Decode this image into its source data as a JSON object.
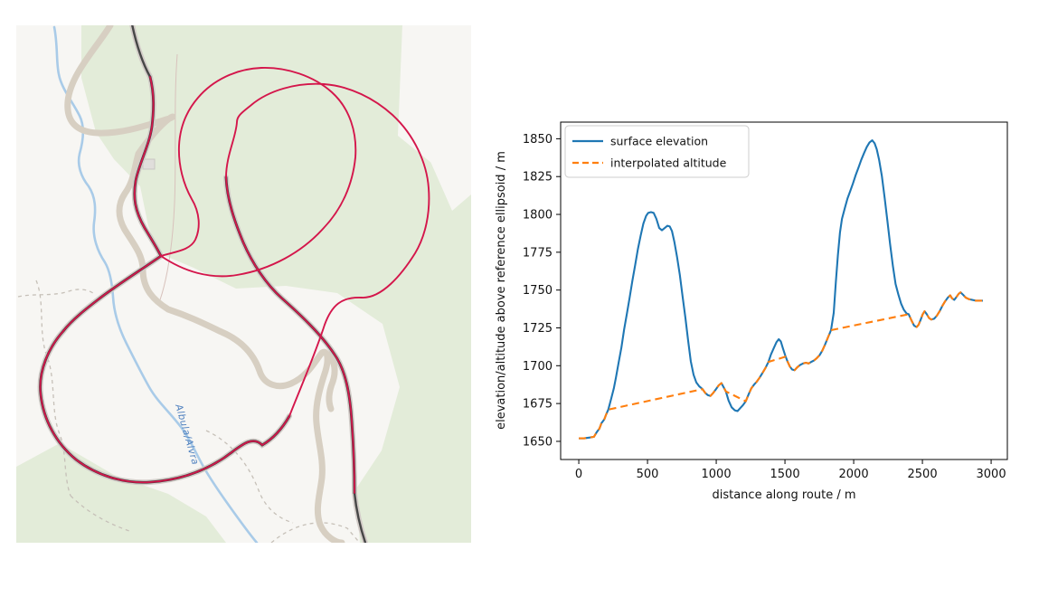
{
  "map": {
    "waterway_label": "Albula/Alvra",
    "colors": {
      "background": "#f7f6f3",
      "forest": "#e3ecd9",
      "water": "#a9cbe8",
      "water_label": "#4d7fbe",
      "road": "#d7cfc2",
      "trail": "#c6c0b8",
      "minor_path": "#d8c2bc",
      "railway": "#474747",
      "railway_inner": "#3c3c3c",
      "railway_casing": "#d3ccc8",
      "route": "#d4164b",
      "building": "#e0dedb"
    }
  },
  "chart": {
    "xlabel": "distance along route / m",
    "ylabel": "elevation/altitude above reference ellipsoid / m",
    "x_ticks": [
      0,
      500,
      1000,
      1500,
      2000,
      2500,
      3000
    ],
    "y_ticks": [
      1650,
      1675,
      1700,
      1725,
      1750,
      1775,
      1800,
      1825,
      1850
    ],
    "legend": [
      {
        "label": "surface elevation",
        "color": "#1f77b4",
        "style": "solid"
      },
      {
        "label": "interpolated altitude",
        "color": "#ff7f0e",
        "style": "dashed"
      }
    ]
  },
  "chart_data": {
    "type": "line",
    "xlabel": "distance along route / m",
    "ylabel": "elevation/altitude above reference ellipsoid / m",
    "xlim": [
      -132,
      3118
    ],
    "ylim": [
      1638,
      1861
    ],
    "grid": false,
    "legend_position": "upper left",
    "tunnel_spans": [
      [
        215,
        900
      ],
      [
        1070,
        1215
      ],
      [
        1380,
        1505
      ],
      [
        1835,
        2400
      ]
    ],
    "series": [
      {
        "name": "surface elevation",
        "color": "#1f77b4",
        "style": "solid",
        "points": [
          [
            0,
            1652
          ],
          [
            40,
            1652
          ],
          [
            80,
            1652.5
          ],
          [
            110,
            1653
          ],
          [
            130,
            1656
          ],
          [
            150,
            1658.5
          ],
          [
            165,
            1662
          ],
          [
            185,
            1664.5
          ],
          [
            200,
            1668
          ],
          [
            215,
            1671
          ],
          [
            235,
            1678
          ],
          [
            255,
            1685
          ],
          [
            270,
            1692
          ],
          [
            290,
            1702
          ],
          [
            310,
            1712
          ],
          [
            330,
            1724
          ],
          [
            350,
            1734.5
          ],
          [
            370,
            1745
          ],
          [
            390,
            1756
          ],
          [
            410,
            1766.5
          ],
          [
            430,
            1777
          ],
          [
            450,
            1786
          ],
          [
            470,
            1794
          ],
          [
            490,
            1799
          ],
          [
            505,
            1801
          ],
          [
            525,
            1801.5
          ],
          [
            545,
            1801
          ],
          [
            565,
            1797
          ],
          [
            585,
            1791
          ],
          [
            605,
            1789.5
          ],
          [
            625,
            1791
          ],
          [
            645,
            1792.5
          ],
          [
            662,
            1792
          ],
          [
            678,
            1789
          ],
          [
            695,
            1782
          ],
          [
            715,
            1772
          ],
          [
            735,
            1760
          ],
          [
            755,
            1746
          ],
          [
            775,
            1732
          ],
          [
            795,
            1717
          ],
          [
            815,
            1703
          ],
          [
            835,
            1694
          ],
          [
            855,
            1689
          ],
          [
            875,
            1686.5
          ],
          [
            900,
            1684.5
          ],
          [
            920,
            1682
          ],
          [
            940,
            1680.5
          ],
          [
            958,
            1680
          ],
          [
            978,
            1682
          ],
          [
            998,
            1684.5
          ],
          [
            1018,
            1687
          ],
          [
            1038,
            1688.5
          ],
          [
            1070,
            1683
          ],
          [
            1090,
            1677
          ],
          [
            1112,
            1672.5
          ],
          [
            1135,
            1670.5
          ],
          [
            1155,
            1670
          ],
          [
            1175,
            1672
          ],
          [
            1195,
            1674
          ],
          [
            1215,
            1676.5
          ],
          [
            1235,
            1681
          ],
          [
            1255,
            1685
          ],
          [
            1275,
            1687.5
          ],
          [
            1295,
            1689.5
          ],
          [
            1315,
            1692
          ],
          [
            1335,
            1695
          ],
          [
            1358,
            1698.5
          ],
          [
            1380,
            1702.5
          ],
          [
            1398,
            1707.5
          ],
          [
            1418,
            1711.5
          ],
          [
            1438,
            1715.5
          ],
          [
            1455,
            1717.5
          ],
          [
            1470,
            1716
          ],
          [
            1485,
            1711.5
          ],
          [
            1505,
            1706
          ],
          [
            1520,
            1702.5
          ],
          [
            1535,
            1699.5
          ],
          [
            1552,
            1697.5
          ],
          [
            1570,
            1697
          ],
          [
            1590,
            1699
          ],
          [
            1610,
            1700.5
          ],
          [
            1632,
            1701.5
          ],
          [
            1652,
            1702
          ],
          [
            1672,
            1701.5
          ],
          [
            1692,
            1702.5
          ],
          [
            1712,
            1703.5
          ],
          [
            1732,
            1705
          ],
          [
            1752,
            1707
          ],
          [
            1772,
            1710
          ],
          [
            1792,
            1714
          ],
          [
            1812,
            1718.5
          ],
          [
            1835,
            1723.5
          ],
          [
            1855,
            1735
          ],
          [
            1870,
            1755
          ],
          [
            1885,
            1773
          ],
          [
            1900,
            1788
          ],
          [
            1915,
            1797
          ],
          [
            1935,
            1804
          ],
          [
            1955,
            1810.5
          ],
          [
            1975,
            1815.5
          ],
          [
            1995,
            1820.5
          ],
          [
            2015,
            1826
          ],
          [
            2035,
            1831
          ],
          [
            2055,
            1836
          ],
          [
            2075,
            1840.5
          ],
          [
            2095,
            1844.5
          ],
          [
            2115,
            1847.5
          ],
          [
            2135,
            1849
          ],
          [
            2152,
            1847
          ],
          [
            2168,
            1843
          ],
          [
            2185,
            1836
          ],
          [
            2205,
            1825.5
          ],
          [
            2225,
            1811
          ],
          [
            2245,
            1796
          ],
          [
            2265,
            1780.5
          ],
          [
            2285,
            1766
          ],
          [
            2305,
            1754
          ],
          [
            2325,
            1747
          ],
          [
            2345,
            1741
          ],
          [
            2365,
            1737
          ],
          [
            2385,
            1734.5
          ],
          [
            2400,
            1734
          ],
          [
            2420,
            1730
          ],
          [
            2440,
            1726.5
          ],
          [
            2458,
            1725.5
          ],
          [
            2472,
            1727
          ],
          [
            2488,
            1730.5
          ],
          [
            2502,
            1734
          ],
          [
            2516,
            1736
          ],
          [
            2532,
            1734
          ],
          [
            2548,
            1731.5
          ],
          [
            2565,
            1730.5
          ],
          [
            2585,
            1731
          ],
          [
            2605,
            1733
          ],
          [
            2625,
            1736
          ],
          [
            2645,
            1739.5
          ],
          [
            2665,
            1742.5
          ],
          [
            2685,
            1745
          ],
          [
            2702,
            1746.5
          ],
          [
            2716,
            1744.5
          ],
          [
            2732,
            1743.5
          ],
          [
            2748,
            1745.5
          ],
          [
            2764,
            1747.5
          ],
          [
            2778,
            1748.5
          ],
          [
            2795,
            1747
          ],
          [
            2815,
            1745
          ],
          [
            2838,
            1744
          ],
          [
            2862,
            1743.5
          ],
          [
            2888,
            1743
          ],
          [
            2915,
            1743
          ],
          [
            2940,
            1743
          ]
        ]
      },
      {
        "name": "interpolated altitude",
        "color": "#ff7f0e",
        "style": "dashed",
        "derivation": "same as surface elevation but linear across tunnel_spans"
      }
    ]
  }
}
